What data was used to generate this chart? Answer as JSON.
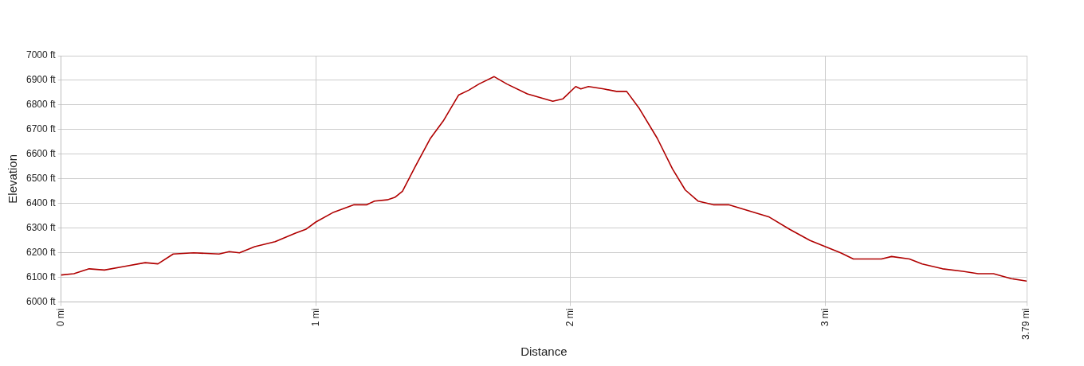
{
  "chart_data": {
    "type": "line",
    "xlabel": "Distance",
    "ylabel": "Elevation",
    "x": [
      0,
      0.05,
      0.11,
      0.17,
      0.25,
      0.33,
      0.38,
      0.44,
      0.52,
      0.62,
      0.66,
      0.7,
      0.76,
      0.84,
      0.92,
      0.96,
      1.0,
      1.07,
      1.15,
      1.2,
      1.23,
      1.28,
      1.31,
      1.34,
      1.39,
      1.45,
      1.5,
      1.56,
      1.6,
      1.64,
      1.7,
      1.75,
      1.83,
      1.93,
      1.97,
      2.02,
      2.04,
      2.07,
      2.13,
      2.18,
      2.22,
      2.27,
      2.34,
      2.4,
      2.45,
      2.5,
      2.56,
      2.62,
      2.7,
      2.78,
      2.86,
      2.94,
      3.0,
      3.06,
      3.11,
      3.17,
      3.22,
      3.26,
      3.33,
      3.38,
      3.46,
      3.54,
      3.6,
      3.66,
      3.73,
      3.79
    ],
    "series": [
      {
        "color": "#b00000",
        "values": [
          6110,
          6115,
          6135,
          6130,
          6145,
          6160,
          6155,
          6195,
          6200,
          6195,
          6205,
          6200,
          6225,
          6245,
          6280,
          6295,
          6325,
          6365,
          6395,
          6395,
          6410,
          6415,
          6425,
          6450,
          6550,
          6665,
          6735,
          6840,
          6860,
          6885,
          6915,
          6885,
          6845,
          6815,
          6825,
          6875,
          6865,
          6875,
          6865,
          6855,
          6855,
          6785,
          6665,
          6540,
          6455,
          6410,
          6395,
          6395,
          6370,
          6345,
          6295,
          6250,
          6225,
          6200,
          6175,
          6175,
          6175,
          6185,
          6175,
          6155,
          6135,
          6125,
          6115,
          6115,
          6095,
          6085
        ]
      }
    ],
    "xlim": [
      0,
      3.79
    ],
    "xticks": [
      {
        "value": 0,
        "label": "0 mi"
      },
      {
        "value": 1,
        "label": "1 mi"
      },
      {
        "value": 2,
        "label": "2 mi"
      },
      {
        "value": 3,
        "label": "3 mi"
      },
      {
        "value": 3.79,
        "label": "3.79 mi"
      }
    ],
    "ylim": [
      6000,
      7000
    ],
    "yticks": [
      {
        "value": 6000,
        "label": "6000 ft"
      },
      {
        "value": 6100,
        "label": "6100 ft"
      },
      {
        "value": 6200,
        "label": "6200 ft"
      },
      {
        "value": 6300,
        "label": "6300 ft"
      },
      {
        "value": 6400,
        "label": "6400 ft"
      },
      {
        "value": 6500,
        "label": "6500 ft"
      },
      {
        "value": 6600,
        "label": "6600 ft"
      },
      {
        "value": 6700,
        "label": "6700 ft"
      },
      {
        "value": 6800,
        "label": "6800 ft"
      },
      {
        "value": 6900,
        "label": "6900 ft"
      },
      {
        "value": 7000,
        "label": "7000 ft"
      }
    ],
    "grid": true,
    "legend": false,
    "marker": "none",
    "line_style": "solid"
  }
}
